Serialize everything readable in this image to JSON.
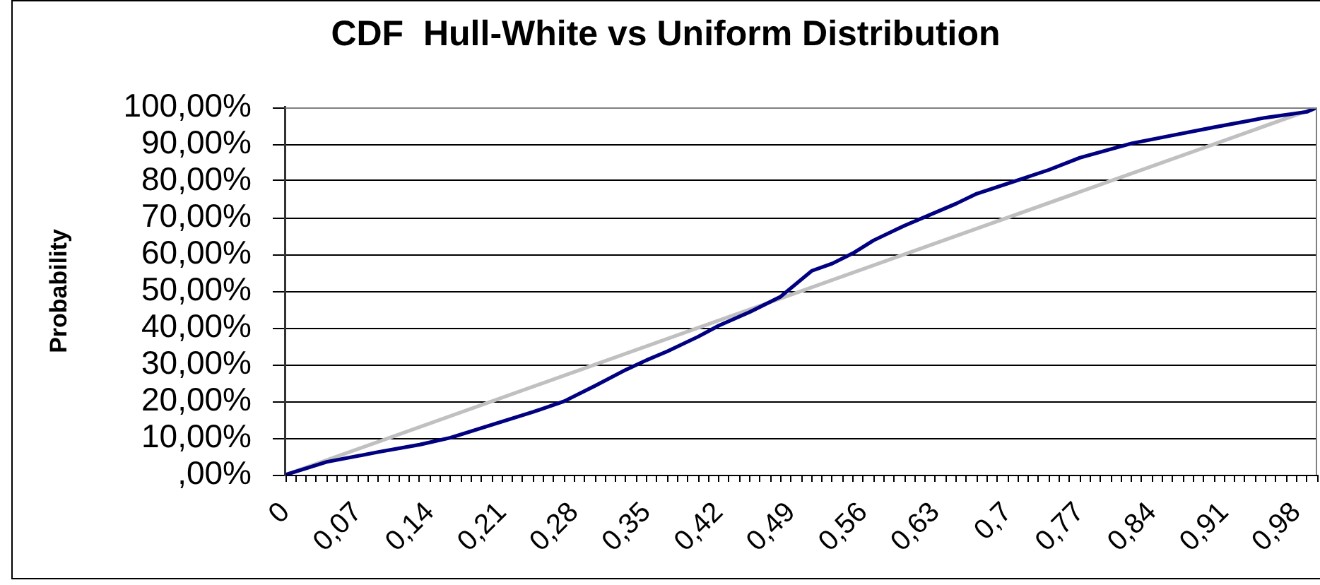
{
  "chart_data": {
    "type": "line",
    "title": "CDF  Hull-White vs Uniform Distribution",
    "ylabel": "Probability",
    "xlim": [
      0,
      1
    ],
    "xticks": [
      0,
      {
        "value": 0.01,
        "label": null
      },
      {
        "value": 0.02,
        "label": null
      },
      {
        "value": 0.03,
        "label": null
      },
      {
        "value": 0.04,
        "label": null
      },
      {
        "value": 0.05,
        "label": null
      },
      {
        "value": 0.06,
        "label": null
      },
      {
        "value": 0.07,
        "label": "0,07"
      },
      {
        "value": 0.08,
        "label": null
      },
      {
        "value": 0.09,
        "label": null
      },
      {
        "value": 0.1,
        "label": null
      },
      {
        "value": 0.11,
        "label": null
      },
      {
        "value": 0.12,
        "label": null
      },
      {
        "value": 0.13,
        "label": null
      },
      {
        "value": 0.14,
        "label": "0,14"
      },
      {
        "value": 0.15,
        "label": null
      },
      {
        "value": 0.16,
        "label": null
      },
      {
        "value": 0.17,
        "label": null
      },
      {
        "value": 0.18,
        "label": null
      },
      {
        "value": 0.19,
        "label": null
      },
      {
        "value": 0.2,
        "label": null
      },
      {
        "value": 0.21,
        "label": "0,21"
      },
      {
        "value": 0.22,
        "label": null
      },
      {
        "value": 0.23,
        "label": null
      },
      {
        "value": 0.24,
        "label": null
      },
      {
        "value": 0.25,
        "label": null
      },
      {
        "value": 0.26,
        "label": null
      },
      {
        "value": 0.27,
        "label": null
      },
      {
        "value": 0.28,
        "label": "0,28"
      },
      {
        "value": 0.29,
        "label": null
      },
      {
        "value": 0.3,
        "label": null
      },
      {
        "value": 0.31,
        "label": null
      },
      {
        "value": 0.32,
        "label": null
      },
      {
        "value": 0.33,
        "label": null
      },
      {
        "value": 0.34,
        "label": null
      },
      {
        "value": 0.35,
        "label": "0,35"
      },
      {
        "value": 0.36,
        "label": null
      },
      {
        "value": 0.37,
        "label": null
      },
      {
        "value": 0.38,
        "label": null
      },
      {
        "value": 0.39,
        "label": null
      },
      {
        "value": 0.4,
        "label": null
      },
      {
        "value": 0.41,
        "label": null
      },
      {
        "value": 0.42,
        "label": "0,42"
      },
      {
        "value": 0.43,
        "label": null
      },
      {
        "value": 0.44,
        "label": null
      },
      {
        "value": 0.45,
        "label": null
      },
      {
        "value": 0.46,
        "label": null
      },
      {
        "value": 0.47,
        "label": null
      },
      {
        "value": 0.48,
        "label": null
      },
      {
        "value": 0.49,
        "label": "0,49"
      },
      {
        "value": 0.5,
        "label": null
      },
      {
        "value": 0.51,
        "label": null
      },
      {
        "value": 0.52,
        "label": null
      },
      {
        "value": 0.53,
        "label": null
      },
      {
        "value": 0.54,
        "label": null
      },
      {
        "value": 0.55,
        "label": null
      },
      {
        "value": 0.56,
        "label": "0,56"
      },
      {
        "value": 0.57,
        "label": null
      },
      {
        "value": 0.58,
        "label": null
      },
      {
        "value": 0.59,
        "label": null
      },
      {
        "value": 0.6,
        "label": null
      },
      {
        "value": 0.61,
        "label": null
      },
      {
        "value": 0.62,
        "label": null
      },
      {
        "value": 0.63,
        "label": "0,63"
      },
      {
        "value": 0.64,
        "label": null
      },
      {
        "value": 0.65,
        "label": null
      },
      {
        "value": 0.66,
        "label": null
      },
      {
        "value": 0.67,
        "label": null
      },
      {
        "value": 0.68,
        "label": null
      },
      {
        "value": 0.69,
        "label": null
      },
      {
        "value": 0.7,
        "label": "0,7"
      },
      {
        "value": 0.71,
        "label": null
      },
      {
        "value": 0.72,
        "label": null
      },
      {
        "value": 0.73,
        "label": null
      },
      {
        "value": 0.74,
        "label": null
      },
      {
        "value": 0.75,
        "label": null
      },
      {
        "value": 0.76,
        "label": null
      },
      {
        "value": 0.77,
        "label": "0,77"
      },
      {
        "value": 0.78,
        "label": null
      },
      {
        "value": 0.79,
        "label": null
      },
      {
        "value": 0.8,
        "label": null
      },
      {
        "value": 0.81,
        "label": null
      },
      {
        "value": 0.82,
        "label": null
      },
      {
        "value": 0.83,
        "label": null
      },
      {
        "value": 0.84,
        "label": "0,84"
      },
      {
        "value": 0.85,
        "label": null
      },
      {
        "value": 0.86,
        "label": null
      },
      {
        "value": 0.87,
        "label": null
      },
      {
        "value": 0.88,
        "label": null
      },
      {
        "value": 0.89,
        "label": null
      },
      {
        "value": 0.9,
        "label": null
      },
      {
        "value": 0.91,
        "label": "0,91"
      },
      {
        "value": 0.92,
        "label": null
      },
      {
        "value": 0.93,
        "label": null
      },
      {
        "value": 0.94,
        "label": null
      },
      {
        "value": 0.95,
        "label": null
      },
      {
        "value": 0.96,
        "label": null
      },
      {
        "value": 0.97,
        "label": null
      },
      {
        "value": 0.98,
        "label": "0,98"
      },
      {
        "value": 0.99,
        "label": null
      },
      {
        "value": 1,
        "label": null
      }
    ],
    "ylim": [
      0,
      100
    ],
    "yticks": [
      {
        "value": 0,
        "label": ",00%"
      },
      {
        "value": 10,
        "label": "10,00%"
      },
      {
        "value": 20,
        "label": "20,00%"
      },
      {
        "value": 30,
        "label": "30,00%"
      },
      {
        "value": 40,
        "label": "40,00%"
      },
      {
        "value": 50,
        "label": "50,00%"
      },
      {
        "value": 60,
        "label": "60,00%"
      },
      {
        "value": 70,
        "label": "70,00%"
      },
      {
        "value": 80,
        "label": "80,00%"
      },
      {
        "value": 90,
        "label": "90,00%"
      },
      {
        "value": 100,
        "label": "100,00%"
      }
    ],
    "grid": "y",
    "series": [
      {
        "color": "#c0c0c0",
        "x": [
          0,
          1
        ],
        "values": [
          0,
          100
        ]
      },
      {
        "color": "#000080",
        "x": [
          0,
          0.04,
          0.09,
          0.13,
          0.16,
          0.2,
          0.24,
          0.27,
          0.3,
          0.33,
          0.35,
          0.37,
          0.4,
          0.42,
          0.45,
          0.48,
          0.51,
          0.53,
          0.55,
          0.57,
          0.6,
          0.65,
          0.67,
          0.71,
          0.74,
          0.77,
          0.82,
          0.86,
          0.9,
          0.95,
          0.99,
          1
        ],
        "values": [
          0,
          3.5,
          6.2,
          8.2,
          10.1,
          13.6,
          17.1,
          20,
          24.2,
          28.6,
          31.2,
          33.6,
          37.6,
          40.6,
          44.3,
          48.5,
          55.5,
          57.5,
          60.3,
          63.8,
          67.8,
          73.8,
          76.5,
          80.2,
          83,
          86.3,
          90.2,
          92.4,
          94.6,
          97.2,
          98.8,
          100
        ]
      }
    ]
  }
}
